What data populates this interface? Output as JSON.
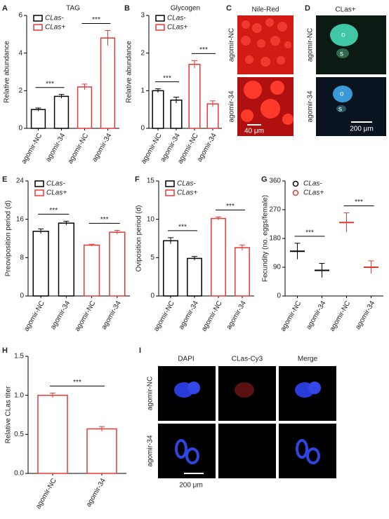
{
  "chart_data": [
    {
      "panel": "A",
      "type": "bar",
      "title": "TAG",
      "ylabel": "Relative abundance",
      "categories": [
        "agomir-NC",
        "agomir-34",
        "agomir-NC",
        "agomir-34"
      ],
      "series": [
        {
          "name": "CLas-",
          "color": "#000000",
          "values": [
            1.0,
            1.7,
            null,
            null
          ],
          "errors": [
            0.08,
            0.1,
            null,
            null
          ]
        },
        {
          "name": "CLas+",
          "color": "#e53935",
          "values": [
            null,
            null,
            2.2,
            4.8
          ],
          "errors": [
            null,
            null,
            0.15,
            0.4
          ]
        }
      ],
      "ylim": [
        0,
        6
      ],
      "yticks": [
        0,
        2,
        4,
        6
      ],
      "annotations": [
        "***",
        "***"
      ],
      "legend": "upper left"
    },
    {
      "panel": "B",
      "type": "bar",
      "title": "Glycogen",
      "ylabel": "Relative abundance",
      "categories": [
        "agomir-NC",
        "agomir-34",
        "agomir-NC",
        "agomir-34"
      ],
      "series": [
        {
          "name": "CLas-",
          "color": "#000000",
          "values": [
            1.0,
            0.75,
            null,
            null
          ],
          "errors": [
            0.05,
            0.08,
            null,
            null
          ]
        },
        {
          "name": "CLas+",
          "color": "#e53935",
          "values": [
            null,
            null,
            1.7,
            0.65
          ],
          "errors": [
            null,
            null,
            0.1,
            0.08
          ]
        }
      ],
      "ylim": [
        0,
        3
      ],
      "yticks": [
        0,
        1,
        2,
        3
      ],
      "annotations": [
        "***",
        "***"
      ],
      "legend": "upper left"
    },
    {
      "panel": "E",
      "type": "bar",
      "ylabel": "Preoviposition period (d)",
      "categories": [
        "agomir-NC",
        "agomir-34",
        "agomir-NC",
        "agomir-34"
      ],
      "series": [
        {
          "name": "CLas-",
          "color": "#000000",
          "values": [
            13.5,
            15.2,
            null,
            null
          ],
          "errors": [
            0.5,
            0.4,
            null,
            null
          ]
        },
        {
          "name": "CLas+",
          "color": "#e53935",
          "values": [
            null,
            null,
            10.6,
            13.3
          ],
          "errors": [
            null,
            null,
            0.2,
            0.4
          ]
        }
      ],
      "ylim": [
        0,
        24
      ],
      "yticks": [
        0,
        8,
        16,
        24
      ],
      "annotations": [
        "***",
        "***"
      ],
      "legend": "upper left"
    },
    {
      "panel": "F",
      "type": "bar",
      "ylabel": "Oviposition period (d)",
      "categories": [
        "agomir-NC",
        "agomir-34",
        "agomir-NC",
        "agomir-34"
      ],
      "series": [
        {
          "name": "CLas-",
          "color": "#000000",
          "values": [
            7.2,
            4.9,
            null,
            null
          ],
          "errors": [
            0.4,
            0.25,
            null,
            null
          ]
        },
        {
          "name": "CLas+",
          "color": "#e53935",
          "values": [
            null,
            null,
            10.1,
            6.3
          ],
          "errors": [
            null,
            null,
            0.2,
            0.35
          ]
        }
      ],
      "ylim": [
        0,
        15
      ],
      "yticks": [
        0,
        5,
        10,
        15
      ],
      "annotations": [
        "***",
        "***"
      ],
      "legend": "upper left"
    },
    {
      "panel": "G",
      "type": "dot",
      "ylabel": "Fecundity (no. eggs/female)",
      "categories": [
        "agomir-NC",
        "agomir-34",
        "agomir-NC",
        "agomir-34"
      ],
      "series": [
        {
          "name": "CLas-",
          "color": "#000000",
          "values": [
            140,
            80,
            null,
            null
          ],
          "errors": [
            25,
            22,
            null,
            null
          ]
        },
        {
          "name": "CLas+",
          "color": "#e53935",
          "values": [
            null,
            null,
            230,
            90
          ],
          "errors": [
            null,
            null,
            30,
            20
          ]
        }
      ],
      "ylim": [
        0,
        360
      ],
      "yticks": [
        0,
        90,
        180,
        270,
        360
      ],
      "annotations": [
        "***",
        "***"
      ],
      "legend": "upper left"
    },
    {
      "panel": "H",
      "type": "bar",
      "ylabel": "Relative CLas titer",
      "categories": [
        "agomir-NC",
        "agomir-34"
      ],
      "values": [
        1.0,
        0.57
      ],
      "errors": [
        0.03,
        0.03
      ],
      "color": "#e53935",
      "ylim": [
        0,
        1.5
      ],
      "yticks": [
        {
          "value": 0,
          "label": "0.0"
        },
        {
          "value": 0.5,
          "label": "0.5"
        },
        {
          "value": 1.0,
          "label": "1.0"
        },
        {
          "value": 1.5,
          "label": "1.5"
        }
      ],
      "annotations": [
        "***"
      ]
    }
  ],
  "images": [
    {
      "panel": "C",
      "title": "Nile-Red",
      "rows": [
        "agomir-NC",
        "agomir-34"
      ],
      "scale": "40 μm"
    },
    {
      "panel": "D",
      "title": "CLas+",
      "rows": [
        "agomir-NC",
        "agomir-34"
      ],
      "scale": "200 μm",
      "labels": [
        "o",
        "s",
        "o",
        "s"
      ]
    },
    {
      "panel": "I",
      "columns": [
        "DAPI",
        "CLas-Cy3",
        "Merge"
      ],
      "rows": [
        "agomir-NC",
        "agomir-34"
      ],
      "scale": "200 μm"
    }
  ]
}
